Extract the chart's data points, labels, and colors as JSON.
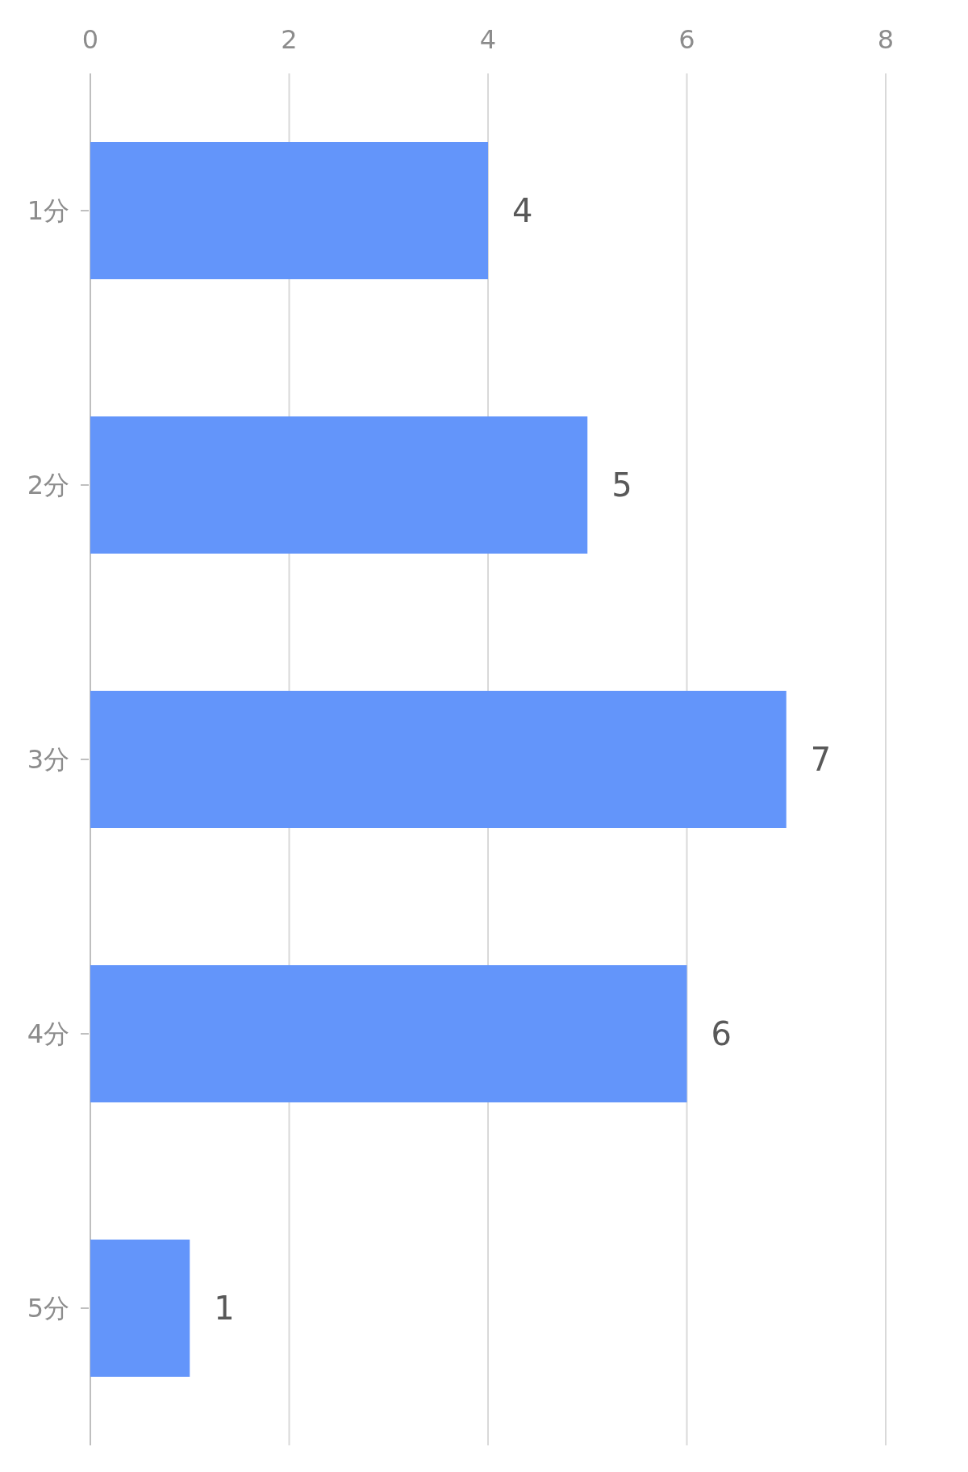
{
  "chart_data": {
    "type": "bar",
    "orientation": "horizontal",
    "categories": [
      "1分",
      "2分",
      "3分",
      "4分",
      "5分"
    ],
    "values": [
      4,
      5,
      7,
      6,
      1
    ],
    "color": "#6395fa",
    "xlim": [
      0,
      8
    ],
    "xticks": [
      0,
      2,
      4,
      6,
      8
    ],
    "grid": "x",
    "data_labels": true
  }
}
